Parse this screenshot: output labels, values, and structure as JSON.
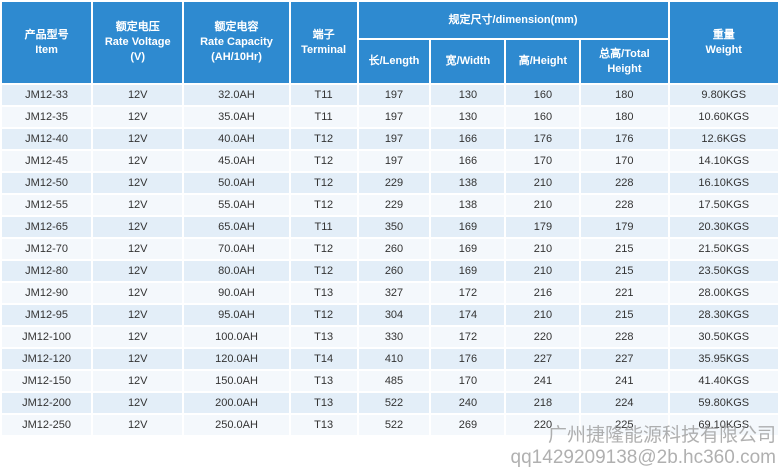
{
  "header": {
    "model_cn": "产品型号",
    "model_en": "Item",
    "voltage_cn": "额定电压",
    "voltage_en": "Rate Voltage",
    "voltage_unit": "(V)",
    "capacity_cn": "额定电容",
    "capacity_en": "Rate Capacity",
    "capacity_unit": "(AH/10Hr)",
    "terminal_cn": "端子",
    "terminal_en": "Terminal",
    "dimension": "规定尺寸/dimension(mm)",
    "length": "长/Length",
    "width": "宽/Width",
    "height": "高/Height",
    "total_cn": "总高/Total",
    "total_en": "Height",
    "weight_cn": "重量",
    "weight_en": "Weight"
  },
  "rows": [
    {
      "item": "JM12-33",
      "voltage": "12V",
      "capacity": "32.0AH",
      "terminal": "T11",
      "length": "197",
      "width": "130",
      "height": "160",
      "total": "180",
      "weight": "9.80KGS"
    },
    {
      "item": "JM12-35",
      "voltage": "12V",
      "capacity": "35.0AH",
      "terminal": "T11",
      "length": "197",
      "width": "130",
      "height": "160",
      "total": "180",
      "weight": "10.60KGS"
    },
    {
      "item": "JM12-40",
      "voltage": "12V",
      "capacity": "40.0AH",
      "terminal": "T12",
      "length": "197",
      "width": "166",
      "height": "176",
      "total": "176",
      "weight": "12.6KGS"
    },
    {
      "item": "JM12-45",
      "voltage": "12V",
      "capacity": "45.0AH",
      "terminal": "T12",
      "length": "197",
      "width": "166",
      "height": "170",
      "total": "170",
      "weight": "14.10KGS"
    },
    {
      "item": "JM12-50",
      "voltage": "12V",
      "capacity": "50.0AH",
      "terminal": "T12",
      "length": "229",
      "width": "138",
      "height": "210",
      "total": "228",
      "weight": "16.10KGS"
    },
    {
      "item": "JM12-55",
      "voltage": "12V",
      "capacity": "55.0AH",
      "terminal": "T12",
      "length": "229",
      "width": "138",
      "height": "210",
      "total": "228",
      "weight": "17.50KGS"
    },
    {
      "item": "JM12-65",
      "voltage": "12V",
      "capacity": "65.0AH",
      "terminal": "T11",
      "length": "350",
      "width": "169",
      "height": "179",
      "total": "179",
      "weight": "20.30KGS"
    },
    {
      "item": "JM12-70",
      "voltage": "12V",
      "capacity": "70.0AH",
      "terminal": "T12",
      "length": "260",
      "width": "169",
      "height": "210",
      "total": "215",
      "weight": "21.50KGS"
    },
    {
      "item": "JM12-80",
      "voltage": "12V",
      "capacity": "80.0AH",
      "terminal": "T12",
      "length": "260",
      "width": "169",
      "height": "210",
      "total": "215",
      "weight": "23.50KGS"
    },
    {
      "item": "JM12-90",
      "voltage": "12V",
      "capacity": "90.0AH",
      "terminal": "T13",
      "length": "327",
      "width": "172",
      "height": "216",
      "total": "221",
      "weight": "28.00KGS"
    },
    {
      "item": "JM12-95",
      "voltage": "12V",
      "capacity": "95.0AH",
      "terminal": "T12",
      "length": "304",
      "width": "174",
      "height": "210",
      "total": "215",
      "weight": "28.30KGS"
    },
    {
      "item": "JM12-100",
      "voltage": "12V",
      "capacity": "100.0AH",
      "terminal": "T13",
      "length": "330",
      "width": "172",
      "height": "220",
      "total": "228",
      "weight": "30.50KGS"
    },
    {
      "item": "JM12-120",
      "voltage": "12V",
      "capacity": "120.0AH",
      "terminal": "T14",
      "length": "410",
      "width": "176",
      "height": "227",
      "total": "227",
      "weight": "35.95KGS"
    },
    {
      "item": "JM12-150",
      "voltage": "12V",
      "capacity": "150.0AH",
      "terminal": "T13",
      "length": "485",
      "width": "170",
      "height": "241",
      "total": "241",
      "weight": "41.40KGS"
    },
    {
      "item": "JM12-200",
      "voltage": "12V",
      "capacity": "200.0AH",
      "terminal": "T13",
      "length": "522",
      "width": "240",
      "height": "218",
      "total": "224",
      "weight": "59.80KGS"
    },
    {
      "item": "JM12-250",
      "voltage": "12V",
      "capacity": "250.0AH",
      "terminal": "T13",
      "length": "522",
      "width": "269",
      "height": "220",
      "total": "225",
      "weight": "69.10KGS"
    }
  ],
  "watermark": {
    "line1": "广州捷隆能源科技有限公司",
    "line2": "qq1429209138@2b.hc360.com"
  },
  "colors": {
    "header_bg": "#2e8ad0",
    "row_odd": "#e3eef8",
    "row_even": "#f4f8fc",
    "text": "#333333"
  }
}
